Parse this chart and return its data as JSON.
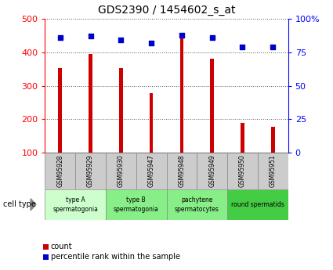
{
  "title": "GDS2390 / 1454602_s_at",
  "samples": [
    "GSM95928",
    "GSM95929",
    "GSM95930",
    "GSM95947",
    "GSM95948",
    "GSM95949",
    "GSM95950",
    "GSM95951"
  ],
  "counts": [
    352,
    395,
    352,
    278,
    447,
    380,
    188,
    178
  ],
  "percentiles": [
    86,
    87,
    84,
    82,
    88,
    86,
    79,
    79
  ],
  "ylim_left": [
    100,
    500
  ],
  "ylim_right": [
    0,
    100
  ],
  "yticks_left": [
    100,
    200,
    300,
    400,
    500
  ],
  "yticks_right": [
    0,
    25,
    50,
    75,
    100
  ],
  "ytick_labels_right": [
    "0",
    "25",
    "50",
    "75",
    "100%"
  ],
  "bar_color": "#cc0000",
  "dot_color": "#0000cc",
  "grid_color": "#555555",
  "sample_box_color": "#cccccc",
  "cell_type_groups": [
    {
      "label": "type A\nspermatogonia",
      "start": 0,
      "end": 1,
      "color": "#ccffcc"
    },
    {
      "label": "type B\nspermatogonia",
      "start": 2,
      "end": 3,
      "color": "#88ee88"
    },
    {
      "label": "pachytene\nspermatocytes",
      "start": 4,
      "end": 5,
      "color": "#88ee88"
    },
    {
      "label": "round spermatids",
      "start": 6,
      "end": 7,
      "color": "#44cc44"
    }
  ],
  "cell_type_label": "cell type",
  "legend_count_label": "count",
  "legend_percentile_label": "percentile rank within the sample",
  "title_fontsize": 10,
  "tick_fontsize": 8,
  "bar_width": 0.12
}
